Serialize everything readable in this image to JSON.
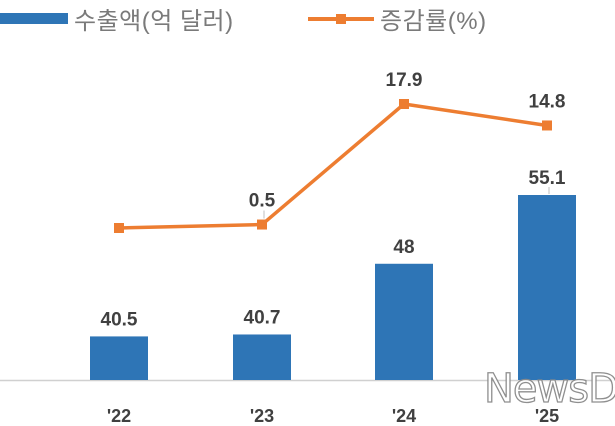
{
  "chart_data": {
    "type": "bar",
    "categories": [
      "'22",
      "'23",
      "'24",
      "'25"
    ],
    "series": [
      {
        "name": "수출액(억 달러)",
        "type": "bar",
        "values": [
          40.5,
          40.7,
          48,
          55.1
        ],
        "labels": [
          "40.5",
          "40.7",
          "48",
          "55.1"
        ],
        "color": "#2e75b6"
      },
      {
        "name": "증감률(%)",
        "type": "line",
        "values": [
          null,
          0.5,
          17.9,
          14.8
        ],
        "labels": [
          "",
          "0.5",
          "17.9",
          "14.8"
        ],
        "color": "#ed7d31"
      }
    ],
    "line_first_point_shown": true,
    "legend": "top-left",
    "grid": false
  },
  "watermark": "NewsDa"
}
